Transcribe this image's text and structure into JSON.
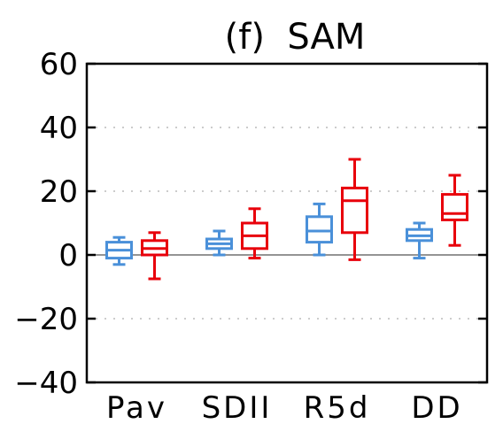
{
  "chart_data": {
    "type": "boxplot",
    "title": "(f)  SAM",
    "xlabel": "",
    "ylabel": "",
    "ylim": [
      -40,
      60
    ],
    "yticks": [
      60,
      40,
      20,
      0,
      -20,
      -40
    ],
    "ytick_labels": [
      "60",
      "40",
      "20",
      "0",
      "−20",
      "−40"
    ],
    "grid": "dotted horizontal",
    "categories": [
      "Pav",
      "SDII",
      "R5d",
      "DD"
    ],
    "series": [
      {
        "color": "#4a90d9",
        "boxes": [
          {
            "min": -3,
            "q1": -1,
            "median": 1.5,
            "q3": 4,
            "max": 5.5
          },
          {
            "min": 0,
            "q1": 2,
            "median": 3.5,
            "q3": 5,
            "max": 7.5
          },
          {
            "min": 0,
            "q1": 4,
            "median": 7.5,
            "q3": 12,
            "max": 16
          },
          {
            "min": -1,
            "q1": 4.5,
            "median": 6,
            "q3": 8,
            "max": 10
          }
        ]
      },
      {
        "color": "#e8000b",
        "boxes": [
          {
            "min": -7.5,
            "q1": 0,
            "median": 2,
            "q3": 4.5,
            "max": 7
          },
          {
            "min": -1,
            "q1": 2,
            "median": 6,
            "q3": 10,
            "max": 14.5
          },
          {
            "min": -1.5,
            "q1": 7,
            "median": 17,
            "q3": 21,
            "max": 30
          },
          {
            "min": 3,
            "q1": 11,
            "median": 13,
            "q3": 19,
            "max": 25
          }
        ]
      }
    ]
  }
}
